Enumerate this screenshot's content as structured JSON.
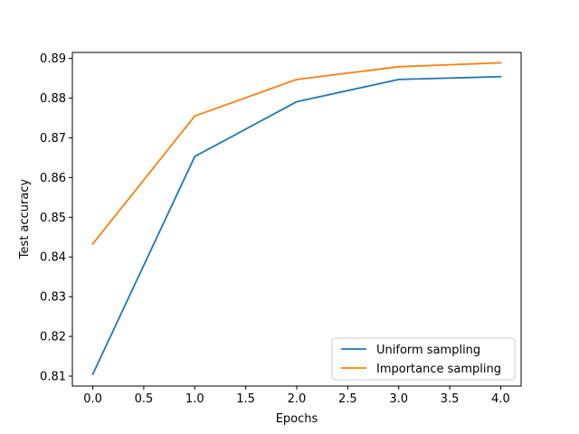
{
  "chart_data": {
    "type": "line",
    "title": "",
    "xlabel": "Epochs",
    "ylabel": "Test accuracy",
    "xlim": [
      -0.2,
      4.2
    ],
    "ylim": [
      0.8075,
      0.8915
    ],
    "xticks": [
      0.0,
      0.5,
      1.0,
      1.5,
      2.0,
      2.5,
      3.0,
      3.5,
      4.0
    ],
    "xtick_labels": [
      "0.0",
      "0.5",
      "1.0",
      "1.5",
      "2.0",
      "2.5",
      "3.0",
      "3.5",
      "4.0"
    ],
    "yticks": [
      0.81,
      0.82,
      0.83,
      0.84,
      0.85,
      0.86,
      0.87,
      0.88,
      0.89
    ],
    "ytick_labels": [
      "0.81",
      "0.82",
      "0.83",
      "0.84",
      "0.85",
      "0.86",
      "0.87",
      "0.88",
      "0.89"
    ],
    "grid": false,
    "legend_position": "lower-right",
    "x": [
      0,
      1,
      2,
      3,
      4
    ],
    "series": [
      {
        "name": "Uniform sampling",
        "color": "#1f77b4",
        "values": [
          0.8105,
          0.8653,
          0.8791,
          0.8847,
          0.8854
        ]
      },
      {
        "name": "Importance sampling",
        "color": "#ff7f0e",
        "values": [
          0.8433,
          0.8755,
          0.8847,
          0.8879,
          0.8889
        ]
      }
    ]
  }
}
